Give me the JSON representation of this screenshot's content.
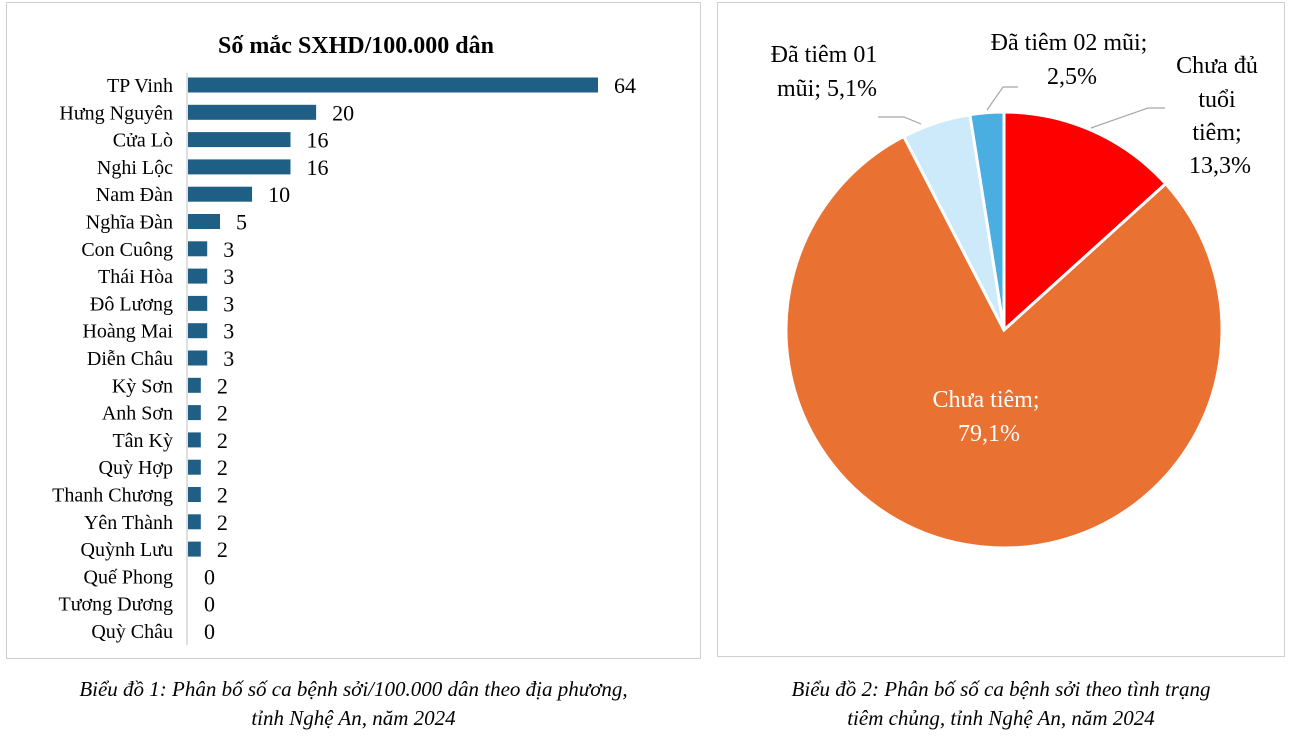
{
  "chart_data": [
    {
      "type": "bar",
      "orientation": "horizontal",
      "title": "Số mắc SXHD/100.000 dân",
      "categories": [
        "TP Vinh",
        "Hưng Nguyên",
        "Cửa Lò",
        "Nghi Lộc",
        "Nam Đàn",
        "Nghĩa Đàn",
        "Con Cuông",
        "Thái Hòa",
        "Đô Lương",
        "Hoàng Mai",
        "Diễn Châu",
        "Kỳ Sơn",
        "Anh Sơn",
        "Tân Kỳ",
        "Quỳ Hợp",
        "Thanh Chương",
        "Yên Thành",
        "Quỳnh Lưu",
        "Quế Phong",
        "Tương Dương",
        "Quỳ Châu"
      ],
      "values": [
        64,
        20,
        16,
        16,
        10,
        5,
        3,
        3,
        3,
        3,
        3,
        2,
        2,
        2,
        2,
        2,
        2,
        2,
        0,
        0,
        0
      ],
      "xlim": [
        0,
        64
      ],
      "grid": false,
      "data_labels": true,
      "bar_color": "#1f5f85"
    },
    {
      "type": "pie",
      "slices": [
        {
          "label": "Chưa đủ tuổi tiêm;",
          "percent_label": "13,3%",
          "value": 13.3,
          "color": "#ff0000"
        },
        {
          "label": "Chưa tiêm;",
          "percent_label": "79,1%",
          "value": 79.1,
          "color": "#e97132"
        },
        {
          "label": "Đã tiêm 01 mũi;",
          "percent_label": "5,1%",
          "value": 5.1,
          "color": "#cdeafb"
        },
        {
          "label": "Đã tiêm 02 mũi;",
          "percent_label": "2,5%",
          "value": 2.5,
          "color": "#4aaee0"
        }
      ],
      "legend": "none",
      "data_labels": true
    }
  ],
  "labels": {
    "pie_chua_du_tuoi": [
      "Chưa đủ",
      "tuổi",
      "tiêm;",
      "13,3%"
    ],
    "pie_chua_tiem": [
      "Chưa tiêm;",
      "79,1%"
    ],
    "pie_da_tiem_01": [
      "Đã tiêm 01",
      "mũi; 5,1%"
    ],
    "pie_da_tiem_02": [
      "Đã tiêm 02 mũi;",
      "2,5%"
    ]
  },
  "captions": {
    "chart1": [
      "Biểu đồ 1: Phân bố số ca bệnh sởi/100.000 dân theo địa phương,",
      "tỉnh Nghệ An, năm 2024"
    ],
    "chart2": [
      "Biểu đồ 2: Phân bố số ca bệnh sởi theo tình trạng",
      "tiêm chủng, tỉnh Nghệ An, năm 2024"
    ]
  }
}
